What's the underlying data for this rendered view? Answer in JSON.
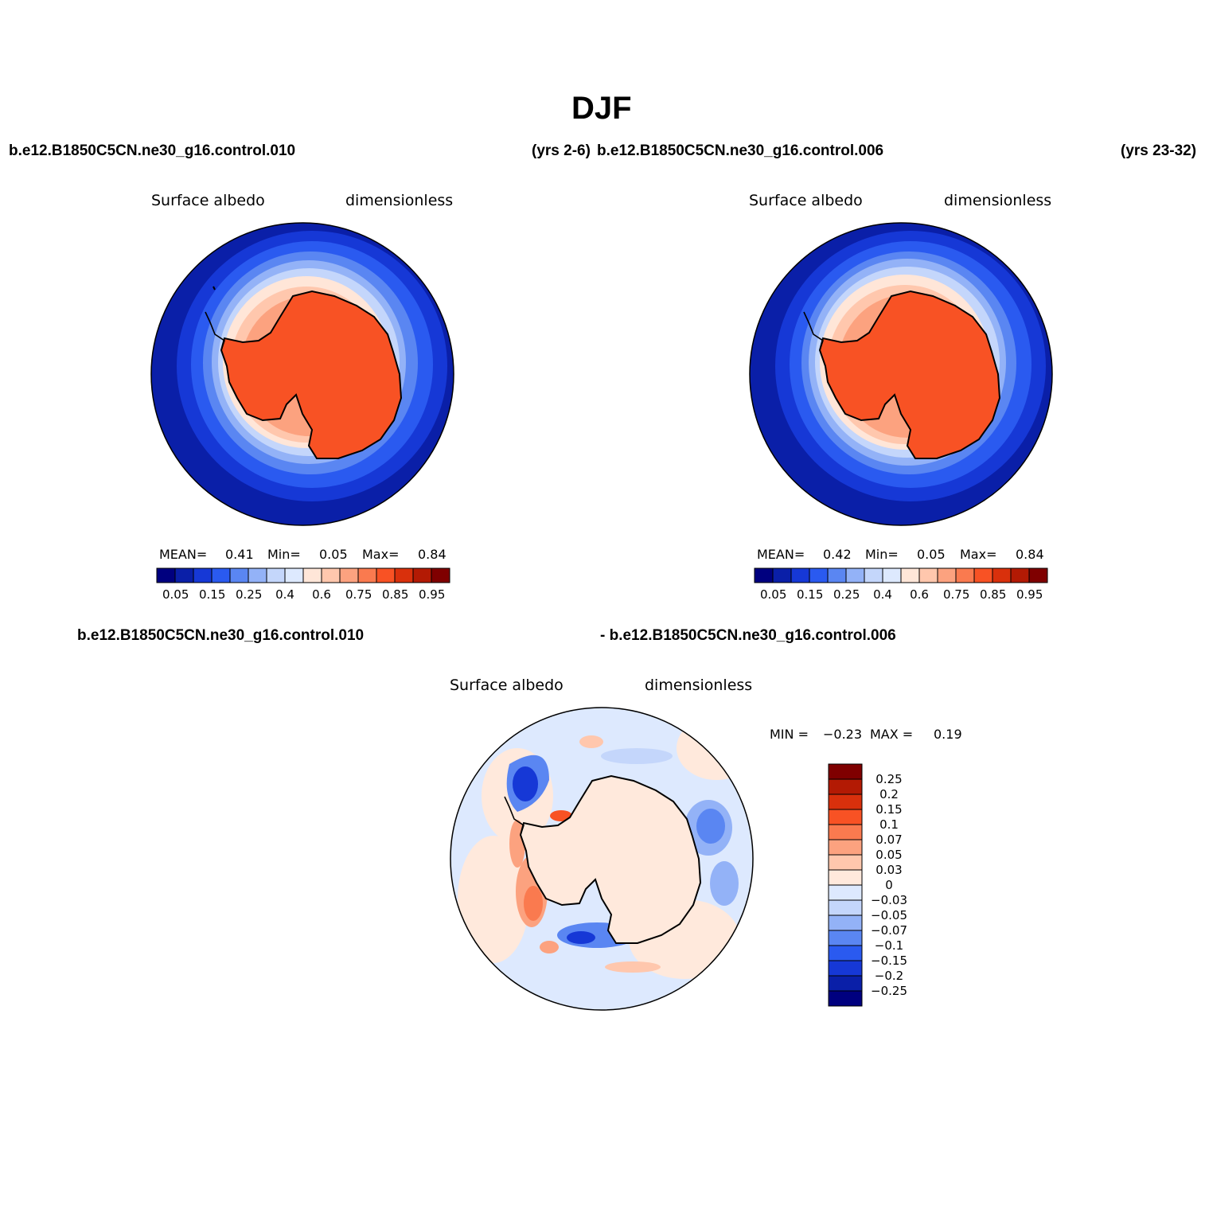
{
  "figure": {
    "title": "DJF",
    "case_a_header": "b.e12.B1850C5CN.ne30_g16.control.010",
    "case_a_years": "(yrs 2-6)",
    "case_b_header": "b.e12.B1850C5CN.ne30_g16.control.006",
    "case_b_years": "(yrs 23-32)",
    "diff_header_left": "b.e12.B1850C5CN.ne30_g16.control.010",
    "diff_header_right": "- b.e12.B1850C5CN.ne30_g16.control.006"
  },
  "panels": [
    {
      "variable": "Surface albedo",
      "units": "dimensionless",
      "mean_label": "MEAN=",
      "mean_value": "0.41",
      "min_label": "Min=",
      "min_value": "0.05",
      "max_label": "Max=",
      "max_value": "0.84",
      "colorbar_ticks": [
        "0.05",
        "0.15",
        "0.25",
        "0.4",
        "0.6",
        "0.75",
        "0.85",
        "0.95"
      ]
    },
    {
      "variable": "Surface albedo",
      "units": "dimensionless",
      "mean_label": "MEAN=",
      "mean_value": "0.42",
      "min_label": "Min=",
      "min_value": "0.05",
      "max_label": "Max=",
      "max_value": "0.84",
      "colorbar_ticks": [
        "0.05",
        "0.15",
        "0.25",
        "0.4",
        "0.6",
        "0.75",
        "0.85",
        "0.95"
      ]
    }
  ],
  "difference_panel": {
    "variable": "Surface albedo",
    "units": "dimensionless",
    "min_label": "MIN =",
    "min_value": "−0.23",
    "max_label": "MAX =",
    "max_value": "0.19",
    "colorbar_ticks": [
      "0.25",
      "0.2",
      "0.15",
      "0.1",
      "0.07",
      "0.05",
      "0.03",
      "0",
      "−0.03",
      "−0.05",
      "−0.07",
      "−0.1",
      "−0.15",
      "−0.2",
      "−0.25"
    ]
  },
  "colors": {
    "abs_palette": [
      "#00007f",
      "#0a1fa8",
      "#1638d6",
      "#2a5af0",
      "#5a86f2",
      "#93b2f7",
      "#c4d6fb",
      "#dde9fe",
      "#ffe6d8",
      "#ffc7ad",
      "#fca27f",
      "#fa7a4f",
      "#f85224",
      "#d9300c",
      "#b31a04",
      "#7f0000"
    ],
    "diff_palette": [
      "#00007f",
      "#0a1fa8",
      "#1638d6",
      "#2a5af0",
      "#5a86f2",
      "#93b2f7",
      "#c4d6fb",
      "#dde9fe",
      "#ffe9dc",
      "#ffc7ad",
      "#fca27f",
      "#fa7a4f",
      "#f85224",
      "#d9300c",
      "#b31a04",
      "#7f0000"
    ]
  },
  "map": {
    "projection": "south-polar stereographic",
    "continent": "Antarctica"
  }
}
